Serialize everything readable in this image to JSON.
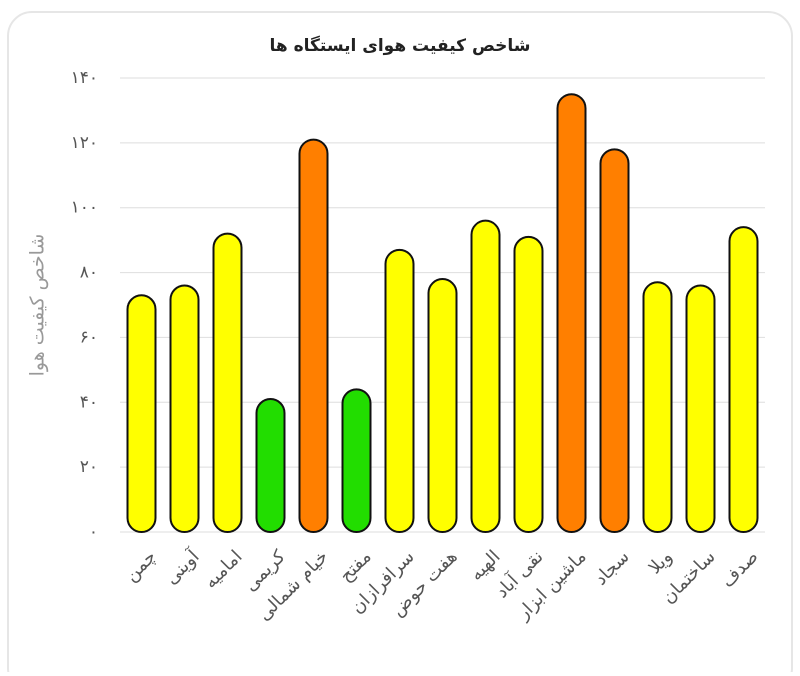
{
  "chart_data": {
    "type": "bar",
    "title": "شاخص کیفیت هوای ایستگاه ها",
    "y_label": "شاخص کیفیت هوا",
    "categories": [
      "چمن",
      "آوینی",
      "امامیه",
      "کریمی",
      "خیام شمالی",
      "مفتح",
      "سرافرازان",
      "هفت حوض",
      "الهیه",
      "نقی آباد",
      "ماشین ابزار",
      "سجاد",
      "ویلا",
      "ساختمان",
      "صدف"
    ],
    "values": [
      73,
      76,
      92,
      41,
      121,
      44,
      87,
      78,
      96,
      91,
      135,
      118,
      77,
      76,
      94
    ],
    "colors": [
      "#ffff00",
      "#ffff00",
      "#ffff00",
      "#22dd00",
      "#ff7f00",
      "#22dd00",
      "#ffff00",
      "#ffff00",
      "#ffff00",
      "#ffff00",
      "#ff7f00",
      "#ff7f00",
      "#ffff00",
      "#ffff00",
      "#ffff00"
    ],
    "ylim": [
      0,
      140
    ],
    "yticks": [
      {
        "value": 0,
        "label": "۰"
      },
      {
        "value": 20,
        "label": "۲۰"
      },
      {
        "value": 40,
        "label": "۴۰"
      },
      {
        "value": 60,
        "label": "۶۰"
      },
      {
        "value": 80,
        "label": "۸۰"
      },
      {
        "value": 100,
        "label": "۱۰۰"
      },
      {
        "value": 120,
        "label": "۱۲۰"
      },
      {
        "value": 140,
        "label": "۱۴۰"
      }
    ],
    "grid": true
  }
}
